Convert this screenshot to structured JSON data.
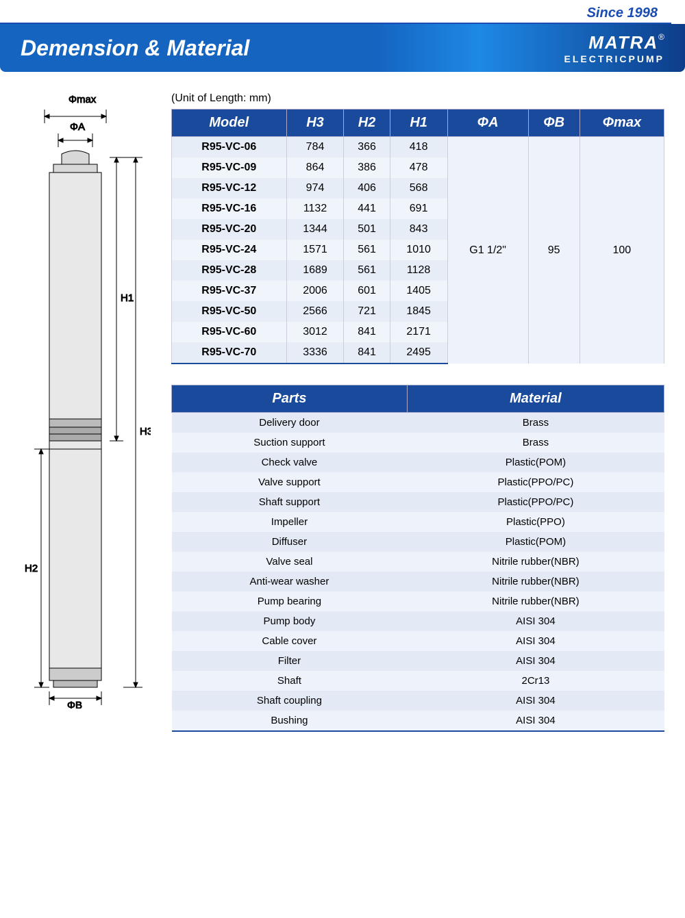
{
  "header": {
    "since": "Since 1998",
    "brand_logo": "MATRA",
    "brand_sub": "ELECTRICPUMP",
    "title": "Demension & Material"
  },
  "unit_label": "(Unit of Length: mm)",
  "dim_table": {
    "columns": [
      "Model",
      "H3",
      "H2",
      "H1",
      "ΦA",
      "ΦB",
      "Φmax"
    ],
    "rows": [
      [
        "R95-VC-06",
        "784",
        "366",
        "418"
      ],
      [
        "R95-VC-09",
        "864",
        "386",
        "478"
      ],
      [
        "R95-VC-12",
        "974",
        "406",
        "568"
      ],
      [
        "R95-VC-16",
        "1132",
        "441",
        "691"
      ],
      [
        "R95-VC-20",
        "1344",
        "501",
        "843"
      ],
      [
        "R95-VC-24",
        "1571",
        "561",
        "1010"
      ],
      [
        "R95-VC-28",
        "1689",
        "561",
        "1128"
      ],
      [
        "R95-VC-37",
        "2006",
        "601",
        "1405"
      ],
      [
        "R95-VC-50",
        "2566",
        "721",
        "1845"
      ],
      [
        "R95-VC-60",
        "3012",
        "841",
        "2171"
      ],
      [
        "R95-VC-70",
        "3336",
        "841",
        "2495"
      ]
    ],
    "phi_a": "G1 1/2\"",
    "phi_b": "95",
    "phi_max": "100"
  },
  "mat_table": {
    "columns": [
      "Parts",
      "Material"
    ],
    "rows": [
      [
        "Delivery door",
        "Brass"
      ],
      [
        "Suction support",
        "Brass"
      ],
      [
        "Check valve",
        "Plastic(POM)"
      ],
      [
        "Valve support",
        "Plastic(PPO/PC)"
      ],
      [
        "Shaft support",
        "Plastic(PPO/PC)"
      ],
      [
        "Impeller",
        "Plastic(PPO)"
      ],
      [
        "Diffuser",
        "Plastic(POM)"
      ],
      [
        "Valve seal",
        "Nitrile rubber(NBR)"
      ],
      [
        "Anti-wear washer",
        "Nitrile rubber(NBR)"
      ],
      [
        "Pump bearing",
        "Nitrile rubber(NBR)"
      ],
      [
        "Pump body",
        "AISI 304"
      ],
      [
        "Cable cover",
        "AISI 304"
      ],
      [
        "Filter",
        "AISI 304"
      ],
      [
        "Shaft",
        "2Cr13"
      ],
      [
        "Shaft coupling",
        "AISI 304"
      ],
      [
        "Bushing",
        "AISI 304"
      ]
    ]
  },
  "diagram": {
    "labels": {
      "phi_max": "Φmax",
      "phi_a": "ΦA",
      "phi_b": "ΦB",
      "h1": "H1",
      "h2": "H2",
      "h3": "H3"
    },
    "colors": {
      "stroke": "#000",
      "body": "#d8d8d8",
      "band": "#bbb"
    }
  }
}
